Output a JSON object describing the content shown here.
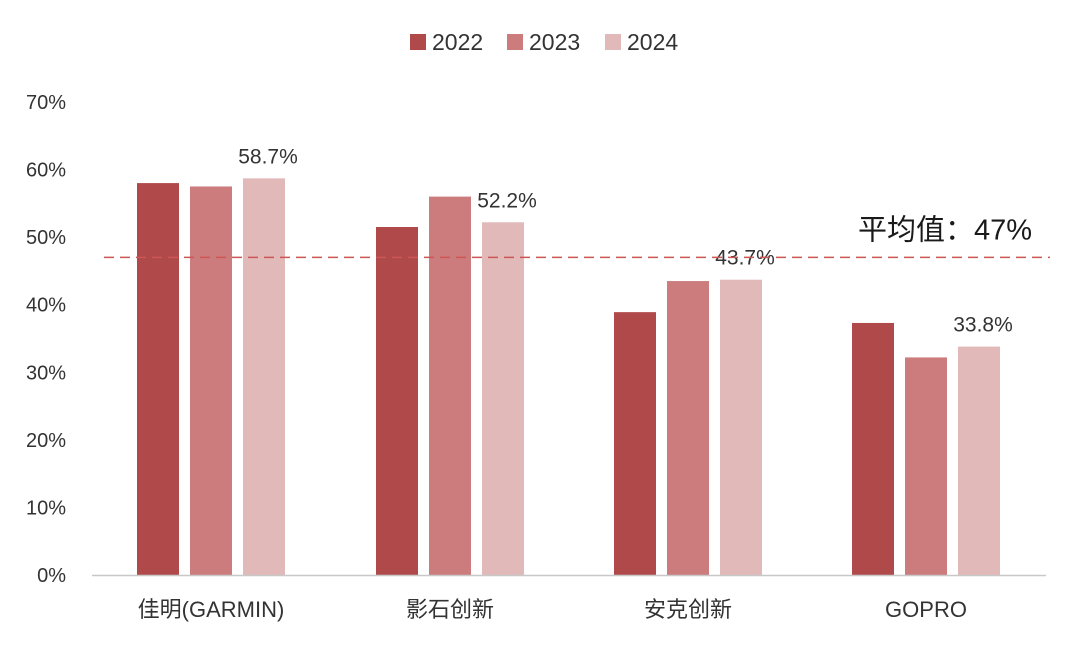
{
  "chart_data": {
    "type": "bar",
    "title": "",
    "xlabel": "",
    "ylabel": "",
    "ylim": [
      0,
      70
    ],
    "y_unit": "%",
    "yticks": [
      "0%",
      "10%",
      "20%",
      "30%",
      "40%",
      "50%",
      "60%",
      "70%"
    ],
    "grid": false,
    "legend_position": "top",
    "categories": [
      "佳明(GARMIN)",
      "影石创新",
      "安克创新",
      "GOPRO"
    ],
    "series": [
      {
        "name": "2022",
        "color": "#b04a4a",
        "values": [
          58.0,
          51.5,
          38.9,
          37.3
        ]
      },
      {
        "name": "2023",
        "color": "#cc7c7c",
        "values": [
          57.5,
          56.0,
          43.5,
          32.2
        ]
      },
      {
        "name": "2024",
        "color": "#e2b9b9",
        "values": [
          58.7,
          52.2,
          43.7,
          33.8
        ]
      }
    ],
    "data_labels": [
      {
        "series": "2024",
        "category": "佳明(GARMIN)",
        "text": "58.7%"
      },
      {
        "series": "2024",
        "category": "影石创新",
        "text": "52.2%"
      },
      {
        "series": "2024",
        "category": "安克创新",
        "text": "43.7%"
      },
      {
        "series": "2024",
        "category": "GOPRO",
        "text": "33.8%"
      }
    ],
    "reference_line": {
      "value": 47,
      "label": "平均值：47%",
      "color": "#cc5555",
      "style": "dashed"
    }
  }
}
